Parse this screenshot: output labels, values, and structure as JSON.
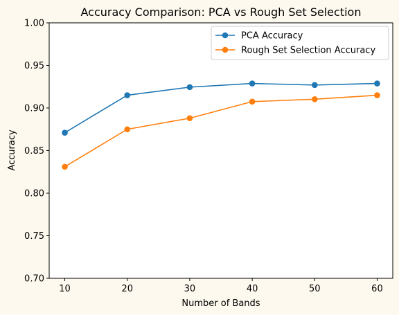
{
  "chart_data": {
    "type": "line",
    "title": "Accuracy Comparison: PCA vs Rough Set Selection",
    "xlabel": "Number of Bands",
    "ylabel": "Accuracy",
    "x": [
      10,
      20,
      30,
      40,
      50,
      60
    ],
    "xticks": [
      "10",
      "20",
      "30",
      "40",
      "50",
      "60"
    ],
    "yticks": [
      "0.70",
      "0.75",
      "0.80",
      "0.85",
      "0.90",
      "0.95",
      "1.00"
    ],
    "xlim": [
      7.5,
      62.5
    ],
    "ylim": [
      0.7,
      1.0
    ],
    "grid": false,
    "legend_position": "upper right",
    "series": [
      {
        "name": "PCA Accuracy",
        "color": "#1f77b4",
        "marker": "circle",
        "values": [
          0.871,
          0.915,
          0.9245,
          0.9288,
          0.927,
          0.9288
        ]
      },
      {
        "name": "Rough Set Selection Accuracy",
        "color": "#ff7f0e",
        "marker": "circle",
        "values": [
          0.831,
          0.875,
          0.888,
          0.9075,
          0.9103,
          0.915
        ]
      }
    ]
  }
}
